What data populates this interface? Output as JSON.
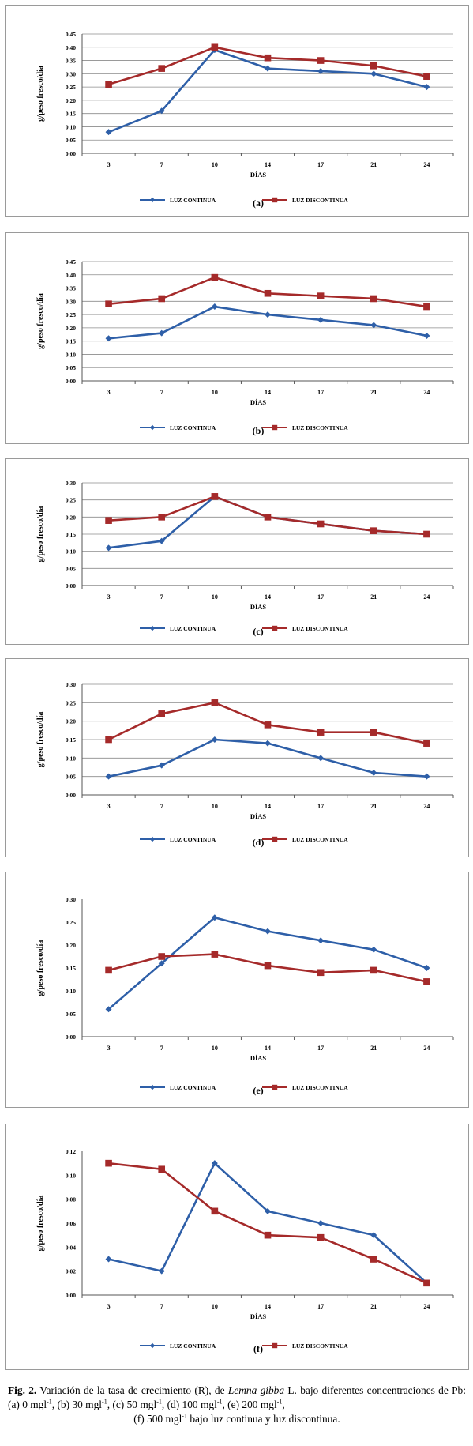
{
  "colors": {
    "continua": "#2e5fa8",
    "discontinua": "#a52a2a",
    "grid": "#8c8c8c",
    "axis": "#555555"
  },
  "icons": {
    "continua_marker": "diamond",
    "discontinua_marker": "square"
  },
  "charts": [
    {
      "chart_data": {
        "type": "line",
        "panel_label": "(a)",
        "categories": [
          "3",
          "7",
          "10",
          "14",
          "17",
          "21",
          "24"
        ],
        "ylabel": "g/peso fresco/día",
        "xlabel": "DÍAS",
        "ylim": [
          0,
          0.45
        ],
        "yticks": [
          "0.00",
          "0.05",
          "0.10",
          "0.15",
          "0.20",
          "0.25",
          "0.30",
          "0.35",
          "0.40",
          "0.45"
        ],
        "grid": true,
        "legend_position": "bottom",
        "series": [
          {
            "name": "LUZ CONTINUA",
            "values": [
              0.08,
              0.16,
              0.39,
              0.32,
              0.31,
              0.3,
              0.25
            ]
          },
          {
            "name": "LUZ DISCONTINUA",
            "values": [
              0.26,
              0.32,
              0.4,
              0.36,
              0.35,
              0.33,
              0.29
            ]
          }
        ]
      }
    },
    {
      "chart_data": {
        "type": "line",
        "panel_label": "(b)",
        "categories": [
          "3",
          "7",
          "10",
          "14",
          "17",
          "21",
          "24"
        ],
        "ylabel": "g/peso fresco/día",
        "xlabel": "DÍAS",
        "ylim": [
          0,
          0.45
        ],
        "yticks": [
          "0.00",
          "0.05",
          "0.10",
          "0.15",
          "0.20",
          "0.25",
          "0.30",
          "0.35",
          "0.40",
          "0.45"
        ],
        "grid": true,
        "legend_position": "bottom",
        "series": [
          {
            "name": "LUZ CONTINUA",
            "values": [
              0.16,
              0.18,
              0.28,
              0.25,
              0.23,
              0.21,
              0.17
            ]
          },
          {
            "name": "LUZ DISCONTINUA",
            "values": [
              0.29,
              0.31,
              0.39,
              0.33,
              0.32,
              0.31,
              0.28
            ]
          }
        ]
      }
    },
    {
      "chart_data": {
        "type": "line",
        "panel_label": "(c)",
        "categories": [
          "3",
          "7",
          "10",
          "14",
          "17",
          "21",
          "24"
        ],
        "ylabel": "g/peso fresco/día",
        "xlabel": "DÍAS",
        "ylim": [
          0,
          0.3
        ],
        "yticks": [
          "0.00",
          "0.05",
          "0.10",
          "0.15",
          "0.20",
          "0.25",
          "0.30"
        ],
        "grid": true,
        "legend_position": "bottom",
        "series": [
          {
            "name": "LUZ CONTINUA",
            "values": [
              0.11,
              0.13,
              0.26,
              0.2,
              0.18,
              0.16,
              0.15
            ]
          },
          {
            "name": "LUZ DISCONTINUA",
            "values": [
              0.19,
              0.2,
              0.26,
              0.2,
              0.18,
              0.16,
              0.15
            ]
          }
        ]
      }
    },
    {
      "chart_data": {
        "type": "line",
        "panel_label": "(d)",
        "categories": [
          "3",
          "7",
          "10",
          "14",
          "17",
          "21",
          "24"
        ],
        "ylabel": "g/peso fresco/día",
        "xlabel": "DÍAS",
        "ylim": [
          0,
          0.3
        ],
        "yticks": [
          "0.00",
          "0.05",
          "0.10",
          "0.15",
          "0.20",
          "0.25",
          "0.30"
        ],
        "grid": true,
        "legend_position": "bottom",
        "series": [
          {
            "name": "LUZ CONTINUA",
            "values": [
              0.05,
              0.08,
              0.15,
              0.14,
              0.1,
              0.06,
              0.05
            ]
          },
          {
            "name": "LUZ DISCONTINUA",
            "values": [
              0.15,
              0.22,
              0.25,
              0.19,
              0.17,
              0.17,
              0.14
            ]
          }
        ]
      }
    },
    {
      "chart_data": {
        "type": "line",
        "panel_label": "(e)",
        "categories": [
          "3",
          "7",
          "10",
          "14",
          "17",
          "21",
          "24"
        ],
        "ylabel": "g/peso fresco/día",
        "xlabel": "DÍAS",
        "ylim": [
          0,
          0.3
        ],
        "yticks": [
          "0.00",
          "0.05",
          "0.10",
          "0.15",
          "0.20",
          "0.25",
          "0.30"
        ],
        "grid": false,
        "legend_position": "bottom",
        "series": [
          {
            "name": "LUZ CONTINUA",
            "values": [
              0.06,
              0.16,
              0.26,
              0.23,
              0.21,
              0.19,
              0.15
            ]
          },
          {
            "name": "LUZ DISCONTINUA",
            "values": [
              0.145,
              0.175,
              0.18,
              0.155,
              0.14,
              0.145,
              0.12
            ]
          }
        ]
      }
    },
    {
      "chart_data": {
        "type": "line",
        "panel_label": "(f)",
        "categories": [
          "3",
          "7",
          "10",
          "14",
          "17",
          "21",
          "24"
        ],
        "ylabel": "g/peso fresco/día",
        "xlabel": "DÍAS",
        "ylim": [
          0,
          0.12
        ],
        "yticks": [
          "0.00",
          "0.02",
          "0.04",
          "0.06",
          "0.08",
          "0.10",
          "0.12"
        ],
        "grid": false,
        "legend_position": "bottom",
        "series": [
          {
            "name": "LUZ CONTINUA",
            "values": [
              0.03,
              0.02,
              0.11,
              0.07,
              0.06,
              0.05,
              0.01
            ]
          },
          {
            "name": "LUZ DISCONTINUA",
            "values": [
              0.11,
              0.105,
              0.07,
              0.05,
              0.048,
              0.03,
              0.01
            ]
          }
        ]
      }
    }
  ],
  "caption": {
    "fig_label": "Fig. 2.",
    "text_1": " Variación de la tasa de crecimiento (R), de ",
    "species": "Lemna gibba",
    "text_2": " L. bajo diferentes concentraciones de Pb: (a) 0 mg",
    "unit_1": "l",
    "sup_1": "-1",
    "text_3": ", (b) 30 mg",
    "unit_2": "l",
    "sup_2": "-1",
    "text_4": ", (c) 50 mg",
    "unit_3": "l",
    "sup_3": "-1",
    "text_5": ", (d) 100 mg",
    "unit_4": "l",
    "sup_4": "-1",
    "text_6": ", (e) 200 mg",
    "unit_5": "l",
    "sup_5": "-1",
    "text_7": ",",
    "text_8": "(f) 500 mg",
    "unit_6": "l",
    "sup_6": "-1",
    "text_9": " bajo luz continua y luz discontinua."
  }
}
